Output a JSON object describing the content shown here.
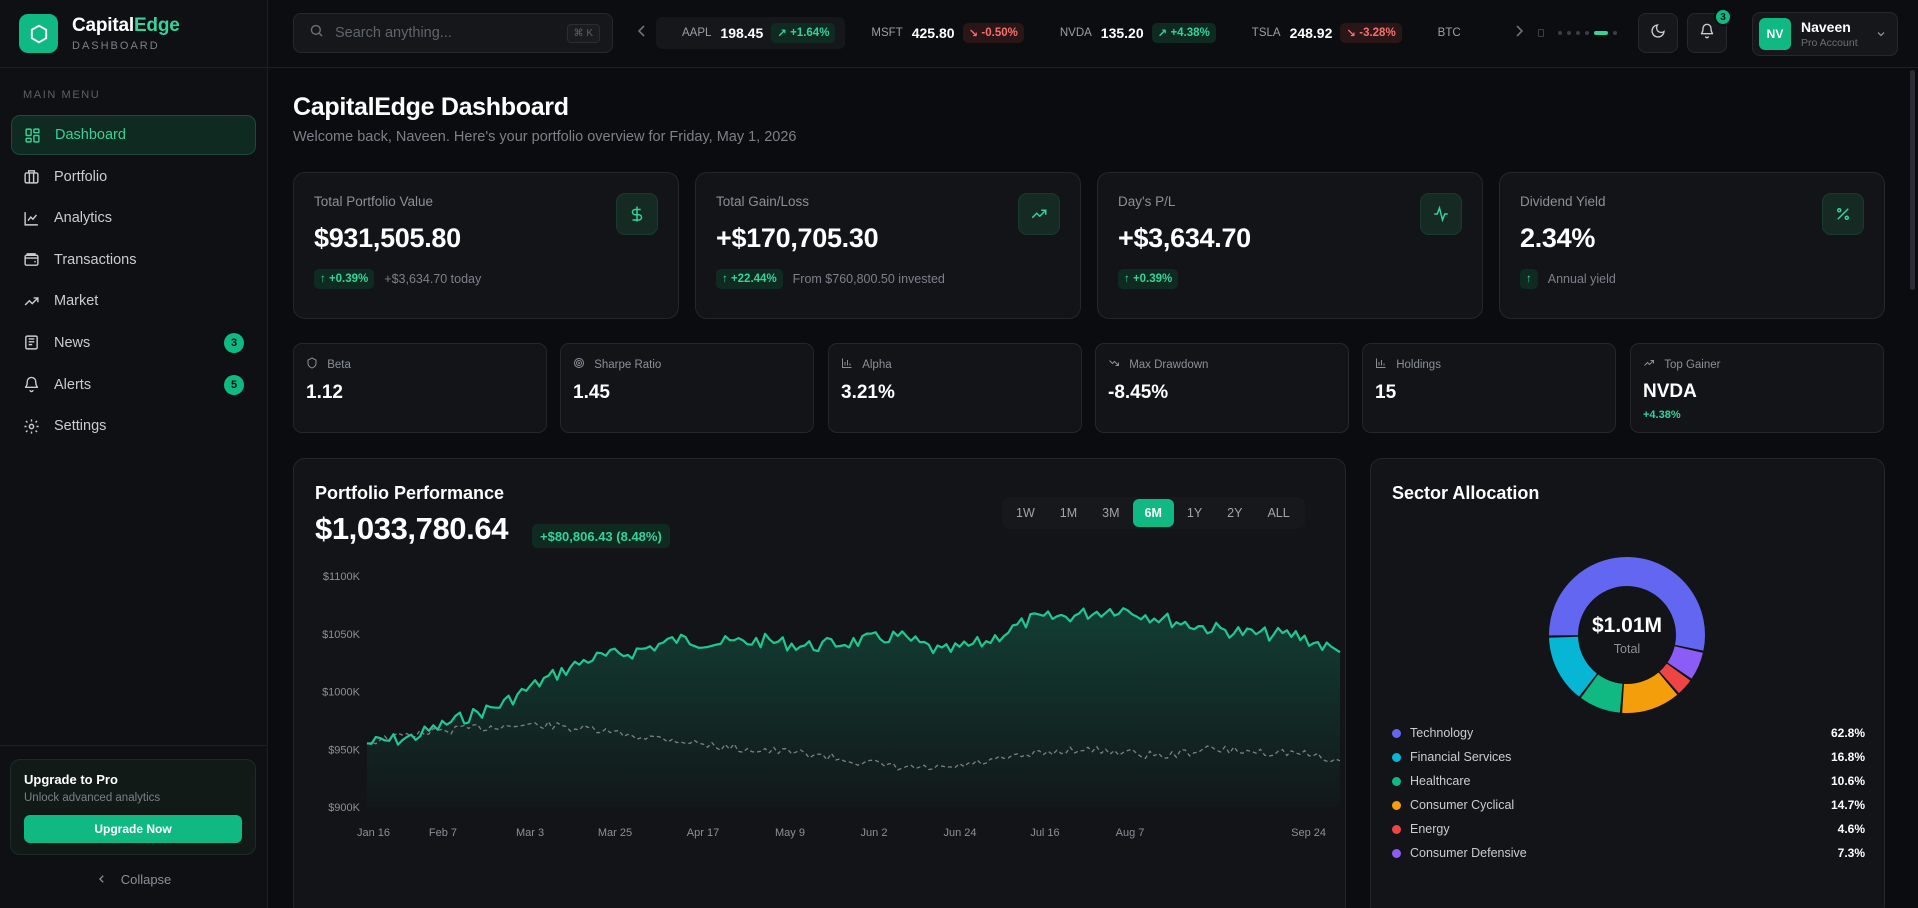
{
  "brand": {
    "name_main": "Capital",
    "name_accent": "Edge",
    "subtitle": "DASHBOARD"
  },
  "sidebar": {
    "section_title": "MAIN MENU",
    "items": [
      {
        "label": "Dashboard",
        "icon": "grid-icon",
        "active": true
      },
      {
        "label": "Portfolio",
        "icon": "briefcase-icon"
      },
      {
        "label": "Analytics",
        "icon": "line-chart-icon"
      },
      {
        "label": "Transactions",
        "icon": "wallet-icon"
      },
      {
        "label": "Market",
        "icon": "trending-up-icon"
      },
      {
        "label": "News",
        "icon": "newspaper-icon",
        "badge": "3"
      },
      {
        "label": "Alerts",
        "icon": "bell-icon",
        "badge": "5"
      },
      {
        "label": "Settings",
        "icon": "gear-icon"
      }
    ],
    "upgrade": {
      "title": "Upgrade to Pro",
      "subtitle": "Unlock advanced analytics",
      "button": "Upgrade Now"
    },
    "collapse_label": "Collapse"
  },
  "topbar": {
    "search_placeholder": "Search anything...",
    "search_shortcut": "⌘ K",
    "tickers": [
      {
        "symbol": "AAPL",
        "price": "198.45",
        "change": "+1.64%",
        "direction": "up"
      },
      {
        "symbol": "MSFT",
        "price": "425.80",
        "change": "-0.50%",
        "direction": "down"
      },
      {
        "symbol": "NVDA",
        "price": "135.20",
        "change": "+4.38%",
        "direction": "up"
      },
      {
        "symbol": "TSLA",
        "price": "248.92",
        "change": "-3.28%",
        "direction": "down"
      },
      {
        "symbol": "BTC",
        "price": "",
        "change": "",
        "direction": "up"
      }
    ],
    "notifications_count": "3",
    "user": {
      "initials": "NV",
      "name": "Naveen",
      "role": "Pro Account"
    }
  },
  "page": {
    "title": "CapitalEdge Dashboard",
    "subtitle": "Welcome back, Naveen. Here's your portfolio overview for Friday, May 1, 2026"
  },
  "kpis": [
    {
      "label": "Total Portfolio Value",
      "value": "$931,505.80",
      "chip": "↑ +0.39%",
      "note": "+$3,634.70 today",
      "icon": "dollar-icon"
    },
    {
      "label": "Total Gain/Loss",
      "value": "+$170,705.30",
      "chip": "↑ +22.44%",
      "note": "From $760,800.50 invested",
      "icon": "trending-up-icon"
    },
    {
      "label": "Day's P/L",
      "value": "+$3,634.70",
      "chip": "↑ +0.39%",
      "note": "",
      "icon": "activity-icon"
    },
    {
      "label": "Dividend Yield",
      "value": "2.34%",
      "chip": "↑",
      "note": "Annual yield",
      "icon": "percent-icon"
    }
  ],
  "metrics": [
    {
      "label": "Beta",
      "value": "1.12",
      "sub": "",
      "icon": "shield-icon"
    },
    {
      "label": "Sharpe Ratio",
      "value": "1.45",
      "sub": "",
      "icon": "target-icon"
    },
    {
      "label": "Alpha",
      "value": "3.21%",
      "sub": "",
      "icon": "bar-chart-icon"
    },
    {
      "label": "Max Drawdown",
      "value": "-8.45%",
      "sub": "",
      "icon": "trending-down-icon"
    },
    {
      "label": "Holdings",
      "value": "15",
      "sub": "",
      "icon": "bar-chart-icon"
    },
    {
      "label": "Top Gainer",
      "value": "NVDA",
      "sub": "+4.38%",
      "icon": "trending-up-icon"
    }
  ],
  "performance": {
    "title": "Portfolio Performance",
    "value": "$1,033,780.64",
    "change": "+$80,806.43 (8.48%)",
    "ranges": [
      "1W",
      "1M",
      "3M",
      "6M",
      "1Y",
      "2Y",
      "ALL"
    ],
    "active_range": "6M"
  },
  "chart_data": [
    {
      "type": "line",
      "title": "Portfolio Performance",
      "xlabel": "",
      "ylabel": "",
      "ylim": [
        900,
        1100
      ],
      "y_ticks": [
        "$1100K",
        "$1050K",
        "$1000K",
        "$950K",
        "$900K"
      ],
      "x_ticks": [
        "Jan 16",
        "Feb 7",
        "Mar 3",
        "Mar 25",
        "Apr 17",
        "May 9",
        "Jun 2",
        "Jun 24",
        "Jul 16",
        "Aug 7",
        "Sep 24"
      ],
      "grid": false,
      "series": [
        {
          "color": "#1fc98e",
          "style": "solid-area",
          "points": [
            [
              "Jan 16",
              955
            ],
            [
              "Jan 25",
              960
            ],
            [
              "Feb 7",
              975
            ],
            [
              "Feb 18",
              988
            ],
            [
              "Mar 3",
              1010
            ],
            [
              "Mar 14",
              1028
            ],
            [
              "Mar 25",
              1034
            ],
            [
              "Apr 5",
              1045
            ],
            [
              "Apr 17",
              1042
            ],
            [
              "Apr 28",
              1044
            ],
            [
              "May 9",
              1039
            ],
            [
              "May 20",
              1043
            ],
            [
              "Jun 2",
              1048
            ],
            [
              "Jun 13",
              1034
            ],
            [
              "Jun 24",
              1043
            ],
            [
              "Jul 5",
              1062
            ],
            [
              "Jul 16",
              1066
            ],
            [
              "Jul 27",
              1072
            ],
            [
              "Aug 7",
              1063
            ],
            [
              "Aug 18",
              1055
            ],
            [
              "Aug 29",
              1050
            ],
            [
              "Sep 10",
              1049
            ],
            [
              "Sep 24",
              1034
            ]
          ]
        },
        {
          "color": "#7c8088",
          "style": "dashed",
          "points": [
            [
              "Jan 16",
              956
            ],
            [
              "Jan 25",
              963
            ],
            [
              "Feb 7",
              967
            ],
            [
              "Feb 18",
              970
            ],
            [
              "Mar 3",
              971
            ],
            [
              "Mar 14",
              967
            ],
            [
              "Mar 25",
              962
            ],
            [
              "Apr 5",
              958
            ],
            [
              "Apr 17",
              952
            ],
            [
              "Apr 28",
              949
            ],
            [
              "May 9",
              946
            ],
            [
              "May 20",
              940
            ],
            [
              "Jun 2",
              934
            ],
            [
              "Jun 13",
              933
            ],
            [
              "Jun 24",
              939
            ],
            [
              "Jul 5",
              945
            ],
            [
              "Jul 16",
              950
            ],
            [
              "Jul 27",
              948
            ],
            [
              "Aug 7",
              944
            ],
            [
              "Aug 18",
              950
            ],
            [
              "Aug 29",
              948
            ],
            [
              "Sep 10",
              947
            ],
            [
              "Sep 24",
              940
            ]
          ]
        }
      ]
    },
    {
      "type": "pie",
      "title": "Sector Allocation",
      "center_value": "$1.01M",
      "center_label": "Total",
      "slices": [
        {
          "name": "Technology",
          "value": 62.8,
          "pct": "62.8%",
          "color": "#6366f1"
        },
        {
          "name": "Financial Services",
          "value": 16.8,
          "pct": "16.8%",
          "color": "#06b6d4"
        },
        {
          "name": "Healthcare",
          "value": 10.6,
          "pct": "10.6%",
          "color": "#10b981"
        },
        {
          "name": "Consumer Cyclical",
          "value": 14.7,
          "pct": "14.7%",
          "color": "#f59e0b"
        },
        {
          "name": "Energy",
          "value": 4.6,
          "pct": "4.6%",
          "color": "#ef4444"
        },
        {
          "name": "Consumer Defensive",
          "value": 7.3,
          "pct": "7.3%",
          "color": "#8b5cf6"
        }
      ]
    }
  ],
  "colors": {
    "accent": "#10b981",
    "up": "#34d399",
    "down": "#f87171",
    "bg": "#0b0c0f",
    "card": "#121418"
  }
}
